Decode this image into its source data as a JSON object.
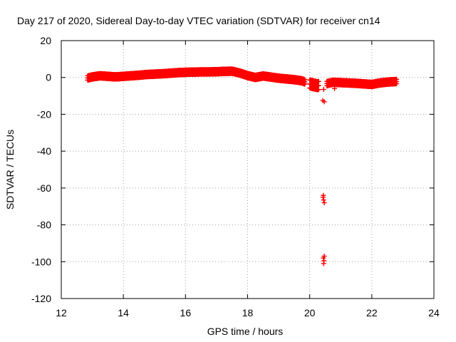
{
  "chart_data": {
    "type": "scatter",
    "title": "Day 217 of 2020, Sidereal Day-to-day VTEC variation (SDTVAR) for receiver cn14",
    "xlabel": "GPS time / hours",
    "ylabel": "SDTVAR / TECUs",
    "xlim": [
      12,
      24
    ],
    "ylim": [
      -120,
      20
    ],
    "x_ticks": [
      12,
      14,
      16,
      18,
      20,
      22,
      24
    ],
    "y_ticks": [
      20,
      0,
      -20,
      -40,
      -60,
      -80,
      -100,
      -120
    ],
    "grid": true,
    "marker": "+",
    "marker_color": "#ff0000",
    "series": [
      {
        "name": "SDTVAR",
        "trend": [
          [
            12.85,
            -0.3
          ],
          [
            13.0,
            0.3
          ],
          [
            13.25,
            0.9
          ],
          [
            13.5,
            0.6
          ],
          [
            13.75,
            0.3
          ],
          [
            14.0,
            0.6
          ],
          [
            14.25,
            0.9
          ],
          [
            14.5,
            1.2
          ],
          [
            14.75,
            1.6
          ],
          [
            15.0,
            1.8
          ],
          [
            15.25,
            2.0
          ],
          [
            15.5,
            2.3
          ],
          [
            15.75,
            2.6
          ],
          [
            16.0,
            2.8
          ],
          [
            16.25,
            2.9
          ],
          [
            16.5,
            3.0
          ],
          [
            16.75,
            3.0
          ],
          [
            17.0,
            3.1
          ],
          [
            17.25,
            3.3
          ],
          [
            17.5,
            3.4
          ],
          [
            17.75,
            2.4
          ],
          [
            18.0,
            1.0
          ],
          [
            18.25,
            0.0
          ],
          [
            18.5,
            0.8
          ],
          [
            18.75,
            0.2
          ],
          [
            19.0,
            -0.4
          ],
          [
            19.25,
            -0.8
          ],
          [
            19.5,
            -1.2
          ],
          [
            19.75,
            -1.8
          ],
          [
            20.0,
            -3.5
          ],
          [
            20.25,
            -4.5
          ],
          [
            20.75,
            -2.6
          ],
          [
            21.0,
            -2.8
          ],
          [
            21.25,
            -3.0
          ],
          [
            21.5,
            -3.2
          ],
          [
            21.75,
            -3.5
          ],
          [
            22.0,
            -3.8
          ],
          [
            22.25,
            -3.0
          ],
          [
            22.5,
            -2.5
          ],
          [
            22.8,
            -2.2
          ]
        ],
        "gaps": [
          [
            19.85,
            20.0
          ],
          [
            20.3,
            20.55
          ]
        ],
        "outliers": [
          [
            20.45,
            -6.5
          ],
          [
            20.8,
            -6.0
          ],
          [
            20.42,
            -12.5
          ],
          [
            20.47,
            -13.2
          ],
          [
            20.43,
            -65.0
          ],
          [
            20.45,
            -66.5
          ],
          [
            20.47,
            -68.0
          ],
          [
            20.44,
            -64.0
          ],
          [
            20.44,
            -98.0
          ],
          [
            20.46,
            -99.5
          ],
          [
            20.45,
            -101.0
          ],
          [
            20.47,
            -97.0
          ]
        ]
      }
    ]
  }
}
